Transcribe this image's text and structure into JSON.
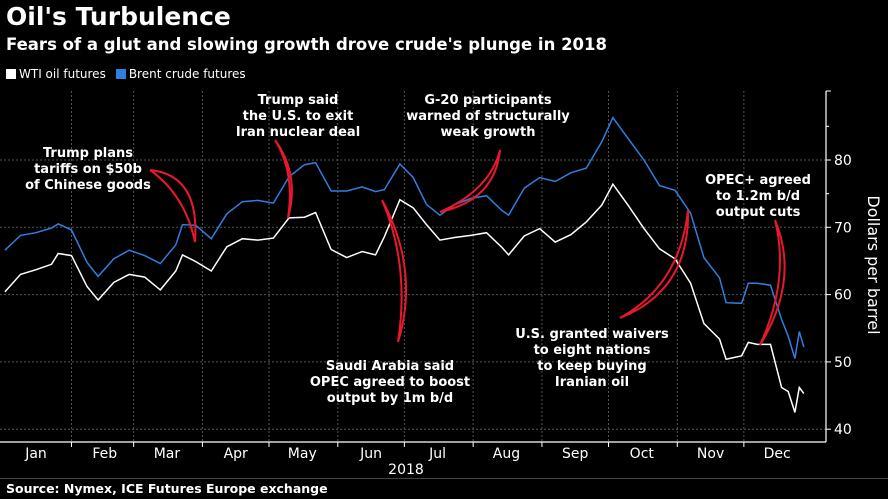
{
  "header": {
    "title": "Oil's Turbulence",
    "subtitle": "Fears of a glut and slowing growth drove crude's plunge in 2018"
  },
  "source": "Source: Nymex, ICE Futures Europe exchange",
  "colors": {
    "background": "#000000",
    "wti": "#ffffff",
    "brent": "#2f7fe0",
    "annotation": "#e8192c",
    "grid": "#555555"
  },
  "chart_data": {
    "type": "line",
    "title": "Oil's Turbulence",
    "subtitle": "Fears of a glut and slowing growth drove crude's plunge in 2018",
    "ylabel": "Dollars per barrel",
    "xlabel": "2018",
    "ylim": [
      38,
      90
    ],
    "yticks": [
      40,
      50,
      60,
      70,
      80
    ],
    "xticks": [
      "Jan",
      "Feb",
      "Mar",
      "Apr",
      "May",
      "Jun",
      "Jul",
      "Aug",
      "Sep",
      "Oct",
      "Nov",
      "Dec"
    ],
    "grid": true,
    "legend": "top-left",
    "x": [
      "2018-01-02",
      "2018-01-09",
      "2018-01-16",
      "2018-01-23",
      "2018-01-26",
      "2018-02-01",
      "2018-02-08",
      "2018-02-13",
      "2018-02-20",
      "2018-02-27",
      "2018-03-06",
      "2018-03-13",
      "2018-03-20",
      "2018-03-23",
      "2018-03-29",
      "2018-04-05",
      "2018-04-12",
      "2018-04-19",
      "2018-04-26",
      "2018-05-03",
      "2018-05-10",
      "2018-05-17",
      "2018-05-22",
      "2018-05-29",
      "2018-06-05",
      "2018-06-12",
      "2018-06-18",
      "2018-06-22",
      "2018-06-29",
      "2018-07-05",
      "2018-07-11",
      "2018-07-17",
      "2018-07-24",
      "2018-07-31",
      "2018-08-07",
      "2018-08-14",
      "2018-08-17",
      "2018-08-24",
      "2018-08-31",
      "2018-09-07",
      "2018-09-14",
      "2018-09-21",
      "2018-09-28",
      "2018-10-03",
      "2018-10-10",
      "2018-10-17",
      "2018-10-24",
      "2018-10-31",
      "2018-11-07",
      "2018-11-13",
      "2018-11-20",
      "2018-11-23",
      "2018-11-30",
      "2018-12-03",
      "2018-12-07",
      "2018-12-13",
      "2018-12-18",
      "2018-12-21",
      "2018-12-24",
      "2018-12-26",
      "2018-12-28"
    ],
    "series": [
      {
        "name": "WTI oil futures",
        "values": [
          60.4,
          63.0,
          63.7,
          64.5,
          66.1,
          65.8,
          61.2,
          59.2,
          61.8,
          63.0,
          62.6,
          60.7,
          63.5,
          65.9,
          64.9,
          63.5,
          67.1,
          68.3,
          68.1,
          68.4,
          71.4,
          71.5,
          72.2,
          66.7,
          65.5,
          66.4,
          65.9,
          68.6,
          74.1,
          72.9,
          70.4,
          68.1,
          68.5,
          68.8,
          69.2,
          67.0,
          65.9,
          68.7,
          69.8,
          67.8,
          68.9,
          70.8,
          73.3,
          76.4,
          73.2,
          69.8,
          66.8,
          65.3,
          61.7,
          55.7,
          53.4,
          50.4,
          50.9,
          52.9,
          52.6,
          52.6,
          46.2,
          45.6,
          42.5,
          46.2,
          45.3
        ]
      },
      {
        "name": "Brent crude futures",
        "values": [
          66.6,
          68.8,
          69.2,
          69.9,
          70.5,
          69.6,
          64.8,
          62.7,
          65.3,
          66.6,
          65.8,
          64.6,
          67.4,
          70.4,
          70.3,
          68.3,
          72.0,
          73.8,
          74.0,
          73.6,
          77.5,
          79.3,
          79.6,
          75.4,
          75.4,
          76.0,
          75.3,
          75.6,
          79.4,
          77.4,
          73.4,
          71.8,
          73.4,
          74.3,
          74.7,
          72.5,
          71.8,
          75.8,
          77.4,
          76.8,
          78.1,
          78.8,
          82.7,
          86.3,
          83.1,
          80.0,
          76.2,
          75.5,
          72.1,
          65.5,
          62.5,
          58.8,
          58.7,
          61.7,
          61.7,
          61.4,
          56.3,
          53.8,
          50.5,
          54.5,
          52.2
        ]
      }
    ],
    "annotations": [
      {
        "lines": [
          "Trump plans",
          "tariffs on $50b",
          "of Chinese goods"
        ]
      },
      {
        "lines": [
          "Trump said",
          "the U.S. to exit",
          "Iran nuclear deal"
        ]
      },
      {
        "lines": [
          "G-20 participants",
          "warned of structurally",
          "weak growth"
        ]
      },
      {
        "lines": [
          "Saudi Arabia said",
          "OPEC agreed to boost",
          "output by 1m b/d"
        ]
      },
      {
        "lines": [
          "U.S. granted waivers",
          "to eight nations",
          "to keep buying",
          "Iranian oil"
        ]
      },
      {
        "lines": [
          "OPEC+ agreed",
          "to 1.2m b/d",
          "output cuts"
        ]
      }
    ]
  }
}
